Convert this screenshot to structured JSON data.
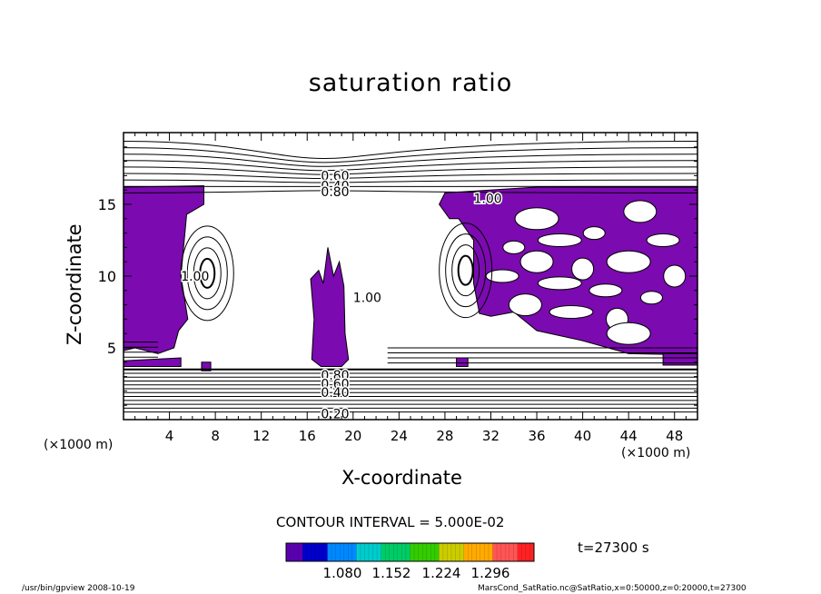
{
  "chart_data": {
    "type": "contour",
    "title": "saturation ratio",
    "xlabel": "X-coordinate",
    "ylabel": "Z-coordinate",
    "x_unit_label": "(×1000 m)",
    "y_unit_label": "(×1000 m)",
    "xlim": [
      0,
      50
    ],
    "ylim": [
      0,
      20
    ],
    "x_ticks": [
      4,
      8,
      12,
      16,
      20,
      24,
      28,
      32,
      36,
      40,
      44,
      48
    ],
    "y_ticks": [
      5,
      10,
      15
    ],
    "contour_interval_text": "CONTOUR INTERVAL = 5.000E-02",
    "contour_labels": [
      {
        "text": "0.60",
        "x": 17.2,
        "z": 17.0
      },
      {
        "text": "0.40",
        "x": 17.2,
        "z": 16.3
      },
      {
        "text": "0.80",
        "x": 17.2,
        "z": 15.9
      },
      {
        "text": "1.00",
        "x": 30.5,
        "z": 15.4
      },
      {
        "text": "1.00",
        "x": 5.0,
        "z": 10.0
      },
      {
        "text": "1.00",
        "x": 20.0,
        "z": 8.5
      },
      {
        "text": "0.80",
        "x": 17.2,
        "z": 3.1
      },
      {
        "text": "0.60",
        "x": 17.2,
        "z": 2.5
      },
      {
        "text": "0.40",
        "x": 17.2,
        "z": 1.9
      },
      {
        "text": "0.20",
        "x": 17.2,
        "z": 0.4
      }
    ],
    "shaded_threshold": 1.0,
    "colorbar": {
      "ticks": [
        "1.080",
        "1.152",
        "1.224",
        "1.296"
      ],
      "colors": [
        "#5a00b0",
        "#0000cc",
        "#0088ff",
        "#00cccc",
        "#00cc66",
        "#33cc00",
        "#cccc00",
        "#ffaa00",
        "#ff5555",
        "#ff2222"
      ]
    },
    "fill_color": "#7b0ab0",
    "time_label": "t=27300 s"
  },
  "footer": {
    "left": "/usr/bin/gpview   2008-10-19",
    "right": "MarsCond_SatRatio.nc@SatRatio,x=0:50000,z=0:20000,t=27300"
  }
}
